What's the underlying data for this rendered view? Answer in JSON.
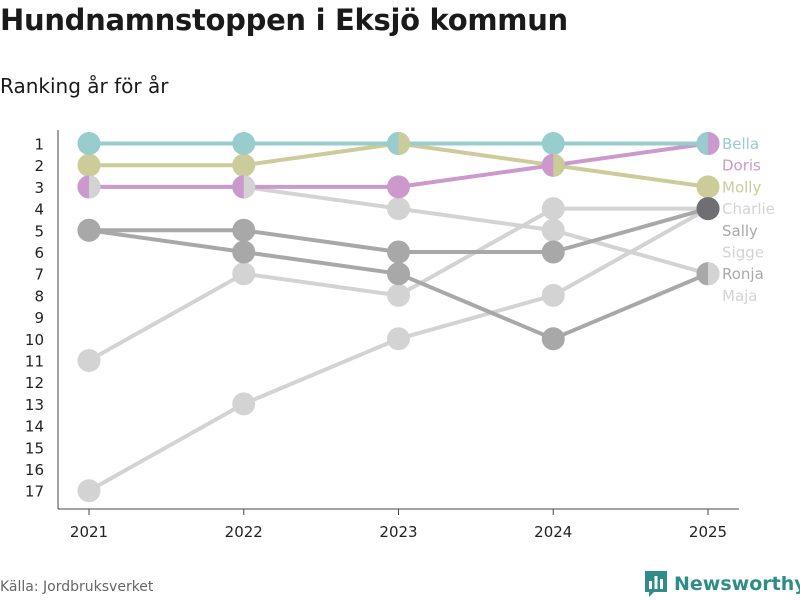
{
  "title": "Hundnamnstoppen i Eksjö kommun",
  "subtitle": "Ranking år för år",
  "source": "Källa: Jordbruksverket",
  "brand": {
    "name": "Newsworthy",
    "icon": "bar-chart-icon",
    "color": "#2f8c87"
  },
  "chart_data": {
    "type": "line",
    "title": "Hundnamnstoppen i Eksjö kommun",
    "subtitle": "Ranking år för år",
    "xlabel": "",
    "ylabel": "",
    "x": [
      2021,
      2022,
      2023,
      2024,
      2025
    ],
    "x_tick_labels": [
      "2021",
      "2022",
      "2023",
      "2024",
      "2025"
    ],
    "y_reversed": true,
    "ylim": [
      1,
      17
    ],
    "y_ticks": [
      1,
      2,
      3,
      4,
      5,
      6,
      7,
      8,
      9,
      10,
      11,
      12,
      13,
      14,
      15,
      16,
      17
    ],
    "y_tick_labels": [
      "1",
      "2",
      "3",
      "4",
      "5",
      "6",
      "7",
      "8",
      "9",
      "10",
      "11",
      "12",
      "13",
      "14",
      "15",
      "16",
      "17"
    ],
    "series": [
      {
        "name": "Sigge",
        "color": "#d3d3d3",
        "values": [
          17,
          13,
          10,
          8,
          4
        ]
      },
      {
        "name": "Maja",
        "color": "#d3d3d3",
        "values": [
          11,
          7,
          8,
          4,
          4
        ]
      },
      {
        "name": "Charlie",
        "color": "#d3d3d3",
        "values": [
          3,
          3,
          4,
          5,
          7
        ]
      },
      {
        "name": "Ronja",
        "color": "#a8a8a8",
        "values": [
          5,
          6,
          7,
          10,
          7
        ]
      },
      {
        "name": "Sally",
        "color": "#a8a8a8",
        "values": [
          5,
          5,
          6,
          6,
          4
        ]
      },
      {
        "name": "Molly",
        "color": "#cccb9a",
        "values": [
          2,
          2,
          1,
          2,
          3
        ]
      },
      {
        "name": "Doris",
        "color": "#cc99cc",
        "values": [
          3,
          3,
          3,
          2,
          1
        ]
      },
      {
        "name": "Bella",
        "color": "#99cccc",
        "values": [
          1,
          1,
          1,
          1,
          1
        ]
      }
    ],
    "labels": [
      {
        "name": "Bella",
        "color": "#99cccc",
        "rank": 1
      },
      {
        "name": "Doris",
        "color": "#cc99cc",
        "rank": 2
      },
      {
        "name": "Molly",
        "color": "#cccb9a",
        "rank": 3
      },
      {
        "name": "Charlie",
        "color": "#d3d3d3",
        "rank": 4
      },
      {
        "name": "Sally",
        "color": "#a8a8a8",
        "rank": 5
      },
      {
        "name": "Sigge",
        "color": "#d3d3d3",
        "rank": 6
      },
      {
        "name": "Ronja",
        "color": "#a8a8a8",
        "rank": 7
      },
      {
        "name": "Maja",
        "color": "#d3d3d3",
        "rank": 8
      }
    ],
    "split_markers": [
      {
        "x": 2021,
        "rank": 3,
        "left": "#cc99cc",
        "right": "#d3d3d3"
      },
      {
        "x": 2022,
        "rank": 3,
        "left": "#cc99cc",
        "right": "#d3d3d3"
      },
      {
        "x": 2023,
        "rank": 1,
        "left": "#99cccc",
        "right": "#cccb9a"
      },
      {
        "x": 2024,
        "rank": 2,
        "left": "#cc99cc",
        "right": "#cccb9a"
      },
      {
        "x": 2025,
        "rank": 1,
        "left": "#99cccc",
        "right": "#cc99cc"
      },
      {
        "x": 2025,
        "rank": 7,
        "left": "#a8a8a8",
        "right": "#d3d3d3"
      }
    ],
    "overlap_marker": {
      "x": 2025,
      "rank": 4,
      "color": "#6e6e73"
    }
  }
}
